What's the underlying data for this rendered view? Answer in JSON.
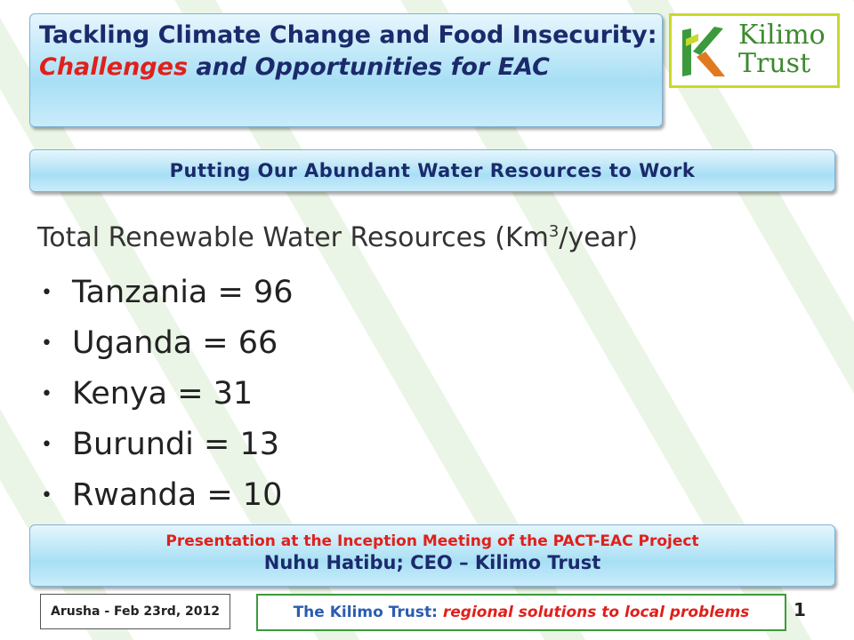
{
  "title": {
    "part1": "Tackling Climate Change and Food Insecurity:",
    "challenges": "Challenges",
    "and": "and",
    "opportunities": "Opportunities",
    "for": "for EAC"
  },
  "logo": {
    "line1": "Kilimo",
    "line2": "Trust"
  },
  "subtitle": "Putting Our Abundant Water Resources to Work",
  "heading": {
    "text": "Total Renewable Water Resources (Km",
    "superscript": "3",
    "unit": "/year)"
  },
  "bullets": [
    "Tanzania = 96",
    "Uganda = 66",
    "Kenya = 31",
    "Burundi = 13",
    "Rwanda = 10"
  ],
  "presentation": {
    "line1": "Presentation at the Inception Meeting of the PACT-EAC  Project",
    "line2": "Nuhu Hatibu; CEO – Kilimo Trust"
  },
  "footer": {
    "place_date": "Arusha - Feb 23rd, 2012",
    "tagline_org": "The Kilimo Trust:",
    "tagline": "regional solutions to local problems",
    "page": "1"
  }
}
